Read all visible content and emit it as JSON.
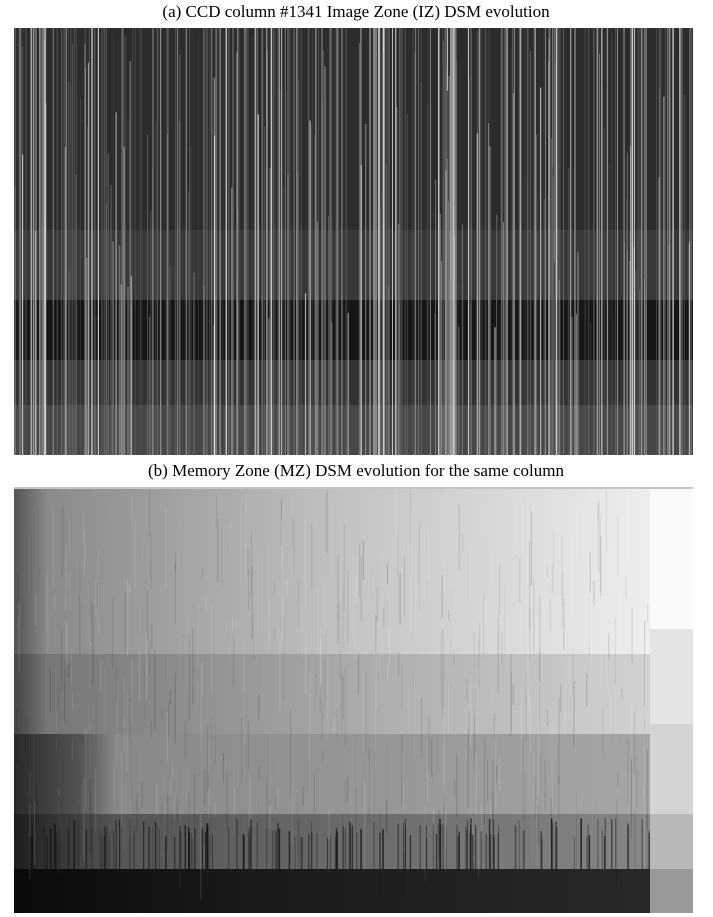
{
  "figure": {
    "panel_a_caption": "(a) CCD column #1341 Image Zone (IZ) DSM evolution",
    "panel_b_caption": "(b) Memory Zone (MZ) DSM evolution for the same column"
  }
}
